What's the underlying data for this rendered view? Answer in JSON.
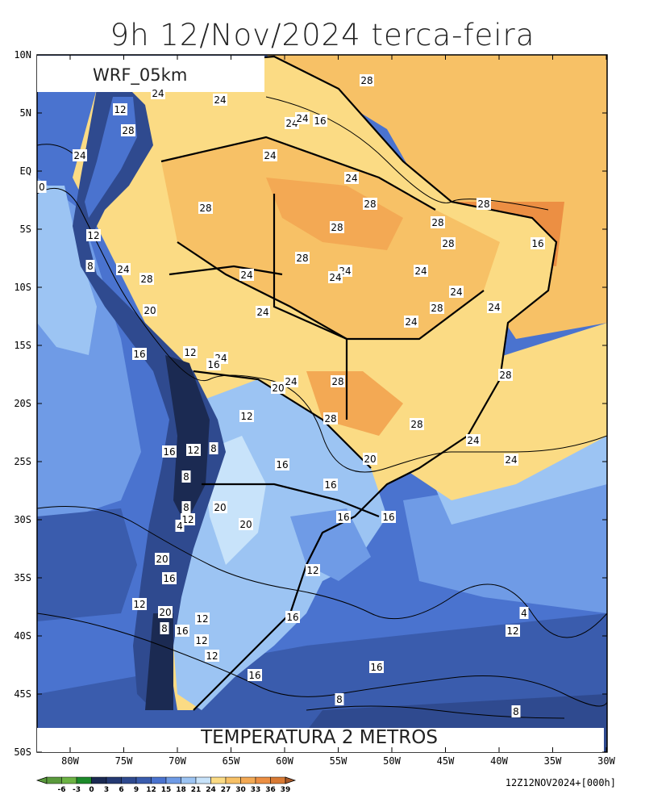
{
  "title": "9h 12/Nov/2024 terca-feira",
  "model_label": "WRF_05km",
  "field_label": "TEMPERATURA 2 METROS",
  "run_info": "12Z12NOV2024+[000h]",
  "lat_ticks": [
    "10N",
    "5N",
    "EQ",
    "5S",
    "10S",
    "15S",
    "20S",
    "25S",
    "30S",
    "35S",
    "40S",
    "45S",
    "50S"
  ],
  "lon_ticks": [
    "80W",
    "75W",
    "70W",
    "65W",
    "60W",
    "55W",
    "50W",
    "45W",
    "40W",
    "35W",
    "30W"
  ],
  "colorbar": {
    "labels": [
      "-6",
      "-3",
      "0",
      "3",
      "6",
      "9",
      "12",
      "15",
      "18",
      "21",
      "24",
      "27",
      "30",
      "33",
      "36",
      "39"
    ],
    "colors": [
      "#5a9a3c",
      "#6cb344",
      "#1c8a2a",
      "#1b2a52",
      "#253a73",
      "#2f4a8f",
      "#3a5cad",
      "#4a73cf",
      "#6f9be6",
      "#9cc4f3",
      "#c8e3fa",
      "#fbdb84",
      "#f7c166",
      "#f3a954",
      "#ec8f43",
      "#d97a34",
      "#a95a2a"
    ]
  },
  "contour_labels": [
    "28",
    "24",
    "12",
    "24",
    "24",
    "24",
    "16",
    "28",
    "24",
    "24",
    "0",
    "28",
    "24",
    "28",
    "28",
    "28",
    "28",
    "16",
    "12",
    "28",
    "28",
    "8",
    "24",
    "28",
    "24",
    "24",
    "24",
    "24",
    "24",
    "28",
    "24",
    "24",
    "20",
    "24",
    "16",
    "12",
    "24",
    "28",
    "28",
    "20",
    "24",
    "12",
    "28",
    "28",
    "16",
    "12",
    "8",
    "24",
    "24",
    "20",
    "16",
    "16",
    "16",
    "8",
    "16",
    "16",
    "8",
    "12",
    "20",
    "20",
    "20",
    "4",
    "12",
    "20",
    "16",
    "16",
    "12",
    "16",
    "8",
    "12",
    "12",
    "4",
    "16",
    "16",
    "12",
    "12",
    "8",
    "8"
  ]
}
